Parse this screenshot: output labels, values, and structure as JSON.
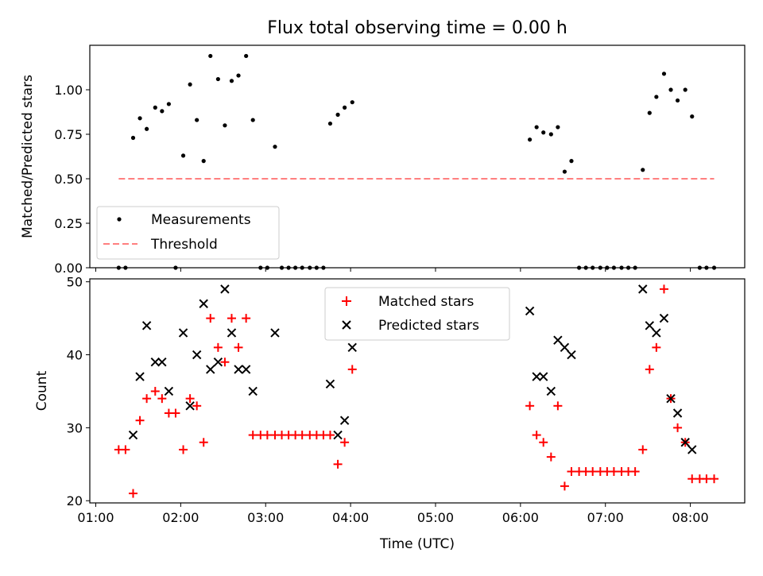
{
  "chart_data": [
    {
      "type": "scatter",
      "title": "Flux total observing time = 0.00 h",
      "xlabel": "",
      "ylabel": "Matched/Predicted stars",
      "ylim": [
        0,
        1.25
      ],
      "xlim_hours": [
        0.93,
        8.64
      ],
      "yticks": [
        0,
        0.25,
        0.5,
        0.75,
        1.0
      ],
      "ytick_labels": [
        "0.00",
        "0.25",
        "0.50",
        "0.75",
        "1.00"
      ],
      "grid": false,
      "legend": {
        "placement": "lower-left",
        "entries": [
          "Measurements",
          "Threshold"
        ]
      },
      "series": [
        {
          "name": "Measurements",
          "marker": "dot",
          "color": "#000000",
          "x": [
            1.27,
            1.35,
            1.44,
            1.52,
            1.6,
            1.7,
            1.78,
            1.86,
            1.94,
            2.03,
            2.11,
            2.19,
            2.27,
            2.35,
            2.44,
            2.52,
            2.6,
            2.68,
            2.77,
            2.85,
            2.94,
            3.02,
            3.11,
            3.19,
            3.27,
            3.35,
            3.43,
            3.52,
            3.6,
            3.68,
            3.76,
            3.85,
            3.93,
            4.02,
            6.11,
            6.19,
            6.27,
            6.36,
            6.44,
            6.52,
            6.6,
            6.69,
            6.77,
            6.85,
            6.94,
            7.02,
            7.1,
            7.19,
            7.27,
            7.35,
            7.44,
            7.52,
            7.6,
            7.69,
            7.77,
            7.85,
            7.94,
            8.02,
            8.11,
            8.19,
            8.28
          ],
          "y": [
            0,
            0,
            0.73,
            0.84,
            0.78,
            0.9,
            0.88,
            0.92,
            0,
            0.63,
            1.03,
            0.83,
            0.6,
            1.19,
            1.06,
            0.8,
            1.05,
            1.08,
            1.19,
            0.83,
            0,
            0,
            0.68,
            0,
            0,
            0,
            0,
            0,
            0,
            0,
            0.81,
            0.86,
            0.9,
            0.93,
            0.72,
            0.79,
            0.76,
            0.75,
            0.79,
            0.54,
            0.6,
            0,
            0,
            0,
            0,
            0,
            0,
            0,
            0,
            0,
            0.55,
            0.87,
            0.96,
            1.09,
            1.0,
            0.94,
            1.0,
            0.85,
            0,
            0,
            0
          ]
        },
        {
          "name": "Threshold",
          "type": "line",
          "style": "dashed",
          "color": "#ff7f7f",
          "x": [
            1.27,
            8.28
          ],
          "y": [
            0.5,
            0.5
          ]
        }
      ]
    },
    {
      "type": "scatter",
      "title": "",
      "xlabel": "Time (UTC)",
      "ylabel": "Count",
      "ylim": [
        19.7,
        50.4
      ],
      "xlim_hours": [
        0.93,
        8.64
      ],
      "yticks": [
        20,
        30,
        40,
        50
      ],
      "ytick_labels": [
        "20",
        "30",
        "40",
        "50"
      ],
      "xticks_hours": [
        1,
        2,
        3,
        4,
        5,
        6,
        7,
        8
      ],
      "xtick_labels": [
        "01:00",
        "02:00",
        "03:00",
        "04:00",
        "05:00",
        "06:00",
        "07:00",
        "08:00"
      ],
      "grid": false,
      "legend": {
        "placement": "upper-center",
        "entries": [
          "Matched stars",
          "Predicted stars"
        ]
      },
      "series": [
        {
          "name": "Matched stars",
          "marker": "plus",
          "color": "#ff0000",
          "x": [
            1.27,
            1.35,
            1.44,
            1.52,
            1.6,
            1.7,
            1.78,
            1.86,
            1.94,
            2.03,
            2.11,
            2.19,
            2.27,
            2.35,
            2.44,
            2.52,
            2.6,
            2.68,
            2.77,
            2.85,
            2.94,
            3.02,
            3.11,
            3.19,
            3.27,
            3.35,
            3.43,
            3.52,
            3.6,
            3.68,
            3.76,
            3.85,
            3.93,
            4.02,
            6.11,
            6.19,
            6.27,
            6.36,
            6.44,
            6.52,
            6.6,
            6.69,
            6.77,
            6.85,
            6.94,
            7.02,
            7.1,
            7.19,
            7.27,
            7.35,
            7.44,
            7.52,
            7.6,
            7.69,
            7.77,
            7.85,
            7.94,
            8.02,
            8.11,
            8.19,
            8.28
          ],
          "y": [
            27,
            27,
            21,
            31,
            34,
            35,
            34,
            32,
            32,
            27,
            34,
            33,
            28,
            45,
            41,
            39,
            45,
            41,
            45,
            29,
            29,
            29,
            29,
            29,
            29,
            29,
            29,
            29,
            29,
            29,
            29,
            25,
            28,
            38,
            33,
            29,
            28,
            26,
            33,
            22,
            24,
            24,
            24,
            24,
            24,
            24,
            24,
            24,
            24,
            24,
            27,
            38,
            41,
            49,
            34,
            30,
            28,
            23,
            23,
            23,
            23
          ],
          "y_note": ""
        },
        {
          "name": "Predicted stars",
          "marker": "x",
          "color": "#000000",
          "x": [
            1.44,
            1.52,
            1.6,
            1.7,
            1.78,
            1.86,
            2.03,
            2.11,
            2.19,
            2.27,
            2.35,
            2.44,
            2.52,
            2.6,
            2.68,
            2.77,
            2.85,
            3.11,
            3.76,
            3.85,
            3.93,
            4.02,
            6.11,
            6.19,
            6.27,
            6.36,
            6.44,
            6.52,
            6.6,
            7.44,
            7.52,
            7.6,
            7.69,
            7.77,
            7.85,
            7.94,
            8.02
          ],
          "y": [
            29,
            37,
            44,
            39,
            39,
            35,
            43,
            33,
            40,
            47,
            38,
            39,
            49,
            43,
            38,
            38,
            35,
            43,
            36,
            29,
            31,
            41,
            46,
            37,
            37,
            35,
            42,
            41,
            40,
            49,
            44,
            43,
            45,
            34,
            32,
            28,
            27
          ]
        }
      ]
    }
  ]
}
